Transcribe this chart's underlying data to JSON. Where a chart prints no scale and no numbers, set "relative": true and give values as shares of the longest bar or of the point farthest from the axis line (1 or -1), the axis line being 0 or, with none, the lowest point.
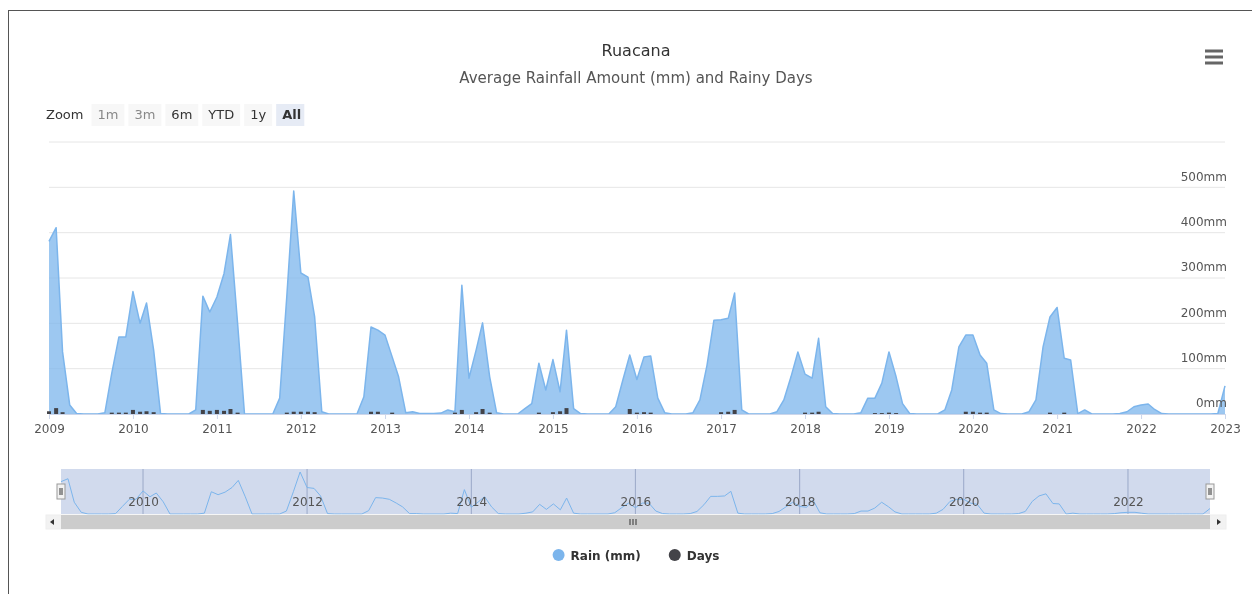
{
  "chart_data": [
    {
      "type": "area",
      "title": "Ruacana",
      "subtitle": "Average Rainfall Amount (mm) and Rainy Days",
      "annotations": [
        "Zoom",
        "1m",
        "3m",
        "6m",
        "YTD",
        "1y",
        "All"
      ],
      "x": [
        "2009-01",
        "2009-02",
        "2009-03",
        "2009-04",
        "2009-05",
        "2009-06",
        "2009-07",
        "2009-08",
        "2009-09",
        "2009-10",
        "2009-11",
        "2009-12",
        "2010-01",
        "2010-02",
        "2010-03",
        "2010-04",
        "2010-05",
        "2010-06",
        "2010-07",
        "2010-08",
        "2010-09",
        "2010-10",
        "2010-11",
        "2010-12",
        "2011-01",
        "2011-02",
        "2011-03",
        "2011-04",
        "2011-05",
        "2011-06",
        "2011-07",
        "2011-08",
        "2011-09",
        "2011-10",
        "2011-11",
        "2011-12",
        "2012-01",
        "2012-02",
        "2012-03",
        "2012-04",
        "2012-05",
        "2012-06",
        "2012-07",
        "2012-08",
        "2012-09",
        "2012-10",
        "2012-11",
        "2012-12",
        "2013-01",
        "2013-02",
        "2013-03",
        "2013-04",
        "2013-05",
        "2013-06",
        "2013-07",
        "2013-08",
        "2013-09",
        "2013-10",
        "2013-11",
        "2013-12",
        "2014-01",
        "2014-02",
        "2014-03",
        "2014-04",
        "2014-05",
        "2014-06",
        "2014-07",
        "2014-08",
        "2014-09",
        "2014-10",
        "2014-11",
        "2014-12",
        "2015-01",
        "2015-02",
        "2015-03",
        "2015-04",
        "2015-05",
        "2015-06",
        "2015-07",
        "2015-08",
        "2015-09",
        "2015-10",
        "2015-11",
        "2015-12",
        "2016-01",
        "2016-02",
        "2016-03",
        "2016-04",
        "2016-05",
        "2016-06",
        "2016-07",
        "2016-08",
        "2016-09",
        "2016-10",
        "2016-11",
        "2016-12",
        "2017-01",
        "2017-02",
        "2017-03",
        "2017-04",
        "2017-05",
        "2017-06",
        "2017-07",
        "2017-08",
        "2017-09",
        "2017-10",
        "2017-11",
        "2017-12",
        "2018-01",
        "2018-02",
        "2018-03",
        "2018-04",
        "2018-05",
        "2018-06",
        "2018-07",
        "2018-08",
        "2018-09",
        "2018-10",
        "2018-11",
        "2018-12",
        "2019-01",
        "2019-02",
        "2019-03",
        "2019-04",
        "2019-05",
        "2019-06",
        "2019-07",
        "2019-08",
        "2019-09",
        "2019-10",
        "2019-11",
        "2019-12",
        "2020-01",
        "2020-02",
        "2020-03",
        "2020-04",
        "2020-05",
        "2020-06",
        "2020-07",
        "2020-08",
        "2020-09",
        "2020-10",
        "2020-11",
        "2020-12",
        "2021-01",
        "2021-02",
        "2021-03",
        "2021-04",
        "2021-05",
        "2021-06",
        "2021-07",
        "2021-08",
        "2021-09",
        "2021-10",
        "2021-11",
        "2021-12",
        "2022-01",
        "2022-02",
        "2022-03",
        "2022-04",
        "2022-05",
        "2022-06",
        "2022-07",
        "2022-08",
        "2022-09",
        "2022-10",
        "2022-11",
        "2022-12",
        "2023-01"
      ],
      "series": [
        {
          "name": "Rain (mm)",
          "color": "#7cb5ec",
          "values": [
            381,
            411,
            137,
            20,
            1,
            0,
            0,
            0,
            3,
            90,
            170,
            170,
            270,
            200,
            245,
            141,
            1,
            0,
            0,
            0,
            0,
            9,
            260,
            225,
            258,
            310,
            396,
            200,
            0,
            0,
            0,
            0,
            0,
            35,
            260,
            492,
            311,
            302,
            214,
            5,
            0,
            0,
            0,
            0,
            0,
            38,
            192,
            185,
            174,
            126,
            82,
            3,
            5,
            1,
            1,
            1,
            2,
            9,
            5,
            284,
            79,
            141,
            201,
            82,
            3,
            0,
            0,
            0,
            12,
            23,
            112,
            53,
            120,
            49,
            185,
            12,
            1,
            0,
            0,
            0,
            0,
            16,
            75,
            130,
            76,
            126,
            128,
            35,
            3,
            0,
            0,
            0,
            3,
            31,
            108,
            207,
            208,
            211,
            267,
            9,
            0,
            0,
            0,
            0,
            5,
            31,
            82,
            137,
            88,
            79,
            167,
            16,
            1,
            0,
            0,
            0,
            3,
            35,
            35,
            68,
            137,
            82,
            23,
            1,
            0,
            0,
            0,
            0,
            9,
            53,
            148,
            174,
            174,
            130,
            112,
            9,
            1,
            0,
            0,
            0,
            5,
            31,
            148,
            214,
            235,
            123,
            119,
            1,
            9,
            0,
            0,
            0,
            0,
            1,
            5,
            16,
            20,
            22,
            10,
            1,
            0,
            0,
            0,
            0,
            0,
            0,
            0,
            1,
            62
          ]
        },
        {
          "name": "Days",
          "type": "bar",
          "color": "#434348",
          "values": [
            6,
            13,
            4,
            null,
            null,
            null,
            null,
            null,
            null,
            3,
            3,
            3,
            9,
            5,
            6,
            4,
            null,
            null,
            null,
            null,
            null,
            null,
            9,
            7,
            9,
            7,
            11,
            3,
            null,
            null,
            null,
            null,
            null,
            null,
            3,
            5,
            5,
            5,
            4,
            null,
            null,
            null,
            null,
            null,
            null,
            null,
            5,
            5,
            null,
            3,
            null,
            null,
            null,
            null,
            null,
            null,
            null,
            null,
            3,
            9,
            null,
            4,
            11,
            3,
            null,
            null,
            null,
            null,
            null,
            null,
            3,
            null,
            4,
            6,
            13,
            null,
            null,
            null,
            null,
            null,
            null,
            null,
            null,
            11,
            3,
            4,
            3,
            null,
            null,
            null,
            null,
            null,
            null,
            null,
            null,
            null,
            4,
            5,
            9,
            null,
            null,
            null,
            null,
            null,
            null,
            null,
            null,
            null,
            3,
            3,
            5,
            null,
            null,
            null,
            null,
            null,
            null,
            null,
            2,
            2,
            3,
            2,
            null,
            null,
            null,
            null,
            null,
            null,
            null,
            null,
            null,
            5,
            5,
            3,
            3,
            null,
            null,
            null,
            null,
            null,
            null,
            null,
            null,
            3,
            null,
            3,
            null,
            null,
            null,
            null,
            null,
            null,
            null,
            null,
            null,
            null,
            null,
            null,
            null,
            null,
            null,
            null,
            null,
            null,
            null,
            null,
            null,
            null,
            null
          ]
        }
      ],
      "xlim": [
        "2009-01",
        "2023-01"
      ],
      "xticks": [
        "2009",
        "2010",
        "2011",
        "2012",
        "2013",
        "2014",
        "2015",
        "2016",
        "2017",
        "2018",
        "2019",
        "2020",
        "2021",
        "2022",
        "2023"
      ],
      "ylim": [
        0,
        600
      ],
      "yticks": [
        {
          "value": 0,
          "label": "0mm"
        },
        {
          "value": 100,
          "label": "100mm"
        },
        {
          "value": 200,
          "label": "200mm"
        },
        {
          "value": 300,
          "label": "300mm"
        },
        {
          "value": 400,
          "label": "400mm"
        },
        {
          "value": 500,
          "label": "500mm"
        },
        {
          "value": 600,
          "label": null
        }
      ],
      "grid": "y",
      "legend": "bottom"
    },
    {
      "type": "line",
      "relative": true,
      "grid": "x",
      "x": [
        "2009-01",
        "2009-02",
        "2009-03",
        "2009-04",
        "2009-05",
        "2009-06",
        "2009-07",
        "2009-08",
        "2009-09",
        "2009-10",
        "2009-11",
        "2009-12",
        "2010-01",
        "2010-02",
        "2010-03",
        "2010-04",
        "2010-05",
        "2010-06",
        "2010-07",
        "2010-08",
        "2010-09",
        "2010-10",
        "2010-11",
        "2010-12",
        "2011-01",
        "2011-02",
        "2011-03",
        "2011-04",
        "2011-05",
        "2011-06",
        "2011-07",
        "2011-08",
        "2011-09",
        "2011-10",
        "2011-11",
        "2011-12",
        "2012-01",
        "2012-02",
        "2012-03",
        "2012-04",
        "2012-05",
        "2012-06",
        "2012-07",
        "2012-08",
        "2012-09",
        "2012-10",
        "2012-11",
        "2012-12",
        "2013-01",
        "2013-02",
        "2013-03",
        "2013-04",
        "2013-05",
        "2013-06",
        "2013-07",
        "2013-08",
        "2013-09",
        "2013-10",
        "2013-11",
        "2013-12",
        "2014-01",
        "2014-02",
        "2014-03",
        "2014-04",
        "2014-05",
        "2014-06",
        "2014-07",
        "2014-08",
        "2014-09",
        "2014-10",
        "2014-11",
        "2014-12",
        "2015-01",
        "2015-02",
        "2015-03",
        "2015-04",
        "2015-05",
        "2015-06",
        "2015-07",
        "2015-08",
        "2015-09",
        "2015-10",
        "2015-11",
        "2015-12",
        "2016-01",
        "2016-02",
        "2016-03",
        "2016-04",
        "2016-05",
        "2016-06",
        "2016-07",
        "2016-08",
        "2016-09",
        "2016-10",
        "2016-11",
        "2016-12",
        "2017-01",
        "2017-02",
        "2017-03",
        "2017-04",
        "2017-05",
        "2017-06",
        "2017-07",
        "2017-08",
        "2017-09",
        "2017-10",
        "2017-11",
        "2017-12",
        "2018-01",
        "2018-02",
        "2018-03",
        "2018-04",
        "2018-05",
        "2018-06",
        "2018-07",
        "2018-08",
        "2018-09",
        "2018-10",
        "2018-11",
        "2018-12",
        "2019-01",
        "2019-02",
        "2019-03",
        "2019-04",
        "2019-05",
        "2019-06",
        "2019-07",
        "2019-08",
        "2019-09",
        "2019-10",
        "2019-11",
        "2019-12",
        "2020-01",
        "2020-02",
        "2020-03",
        "2020-04",
        "2020-05",
        "2020-06",
        "2020-07",
        "2020-08",
        "2020-09",
        "2020-10",
        "2020-11",
        "2020-12",
        "2021-01",
        "2021-02",
        "2021-03",
        "2021-04",
        "2021-05",
        "2021-06",
        "2021-07",
        "2021-08",
        "2021-09",
        "2021-10",
        "2021-11",
        "2021-12",
        "2022-01",
        "2022-02",
        "2022-03",
        "2022-04",
        "2022-05",
        "2022-06",
        "2022-07",
        "2022-08",
        "2022-09",
        "2022-10",
        "2022-11",
        "2022-12",
        "2023-01"
      ],
      "series": [
        {
          "color": "#7cb5ec",
          "values": [
            0.77,
            0.84,
            0.28,
            0.04,
            0,
            0,
            0,
            0,
            0.01,
            0.18,
            0.35,
            0.35,
            0.55,
            0.41,
            0.5,
            0.29,
            0,
            0,
            0,
            0,
            0,
            0.02,
            0.53,
            0.46,
            0.52,
            0.63,
            0.8,
            0.41,
            0,
            0,
            0,
            0,
            0,
            0.07,
            0.53,
            1,
            0.63,
            0.61,
            0.43,
            0.01,
            0,
            0,
            0,
            0,
            0,
            0.08,
            0.39,
            0.38,
            0.35,
            0.26,
            0.17,
            0.01,
            0.01,
            0,
            0,
            0,
            0,
            0.02,
            0.01,
            0.58,
            0.16,
            0.29,
            0.41,
            0.17,
            0.01,
            0,
            0,
            0,
            0.02,
            0.05,
            0.23,
            0.11,
            0.24,
            0.1,
            0.38,
            0.02,
            0,
            0,
            0,
            0,
            0,
            0.03,
            0.15,
            0.26,
            0.15,
            0.26,
            0.26,
            0.07,
            0.01,
            0,
            0,
            0,
            0.01,
            0.06,
            0.22,
            0.42,
            0.42,
            0.43,
            0.54,
            0.02,
            0,
            0,
            0,
            0,
            0.01,
            0.06,
            0.17,
            0.28,
            0.18,
            0.16,
            0.34,
            0.03,
            0,
            0,
            0,
            0,
            0.01,
            0.07,
            0.07,
            0.14,
            0.28,
            0.17,
            0.05,
            0,
            0,
            0,
            0,
            0,
            0.02,
            0.11,
            0.3,
            0.35,
            0.35,
            0.26,
            0.23,
            0.02,
            0,
            0,
            0,
            0,
            0.01,
            0.06,
            0.3,
            0.43,
            0.48,
            0.25,
            0.24,
            0,
            0.02,
            0,
            0,
            0,
            0,
            0,
            0.01,
            0.03,
            0.04,
            0.04,
            0.02,
            0,
            0,
            0,
            0,
            0,
            0,
            0,
            0,
            0,
            0.13
          ]
        }
      ],
      "xlim": [
        "2009-01",
        "2023-01"
      ],
      "xticks": [
        "2010",
        "2012",
        "2014",
        "2016",
        "2018",
        "2020",
        "2022"
      ]
    }
  ]
}
